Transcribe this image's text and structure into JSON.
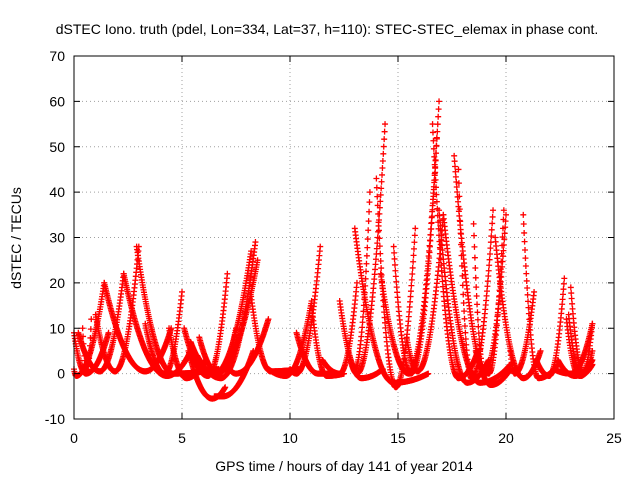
{
  "chart_data": {
    "type": "scatter",
    "title": "dSTEC Iono. truth (pdel, Lon=334, Lat=37, h=110): STEC-STEC_elemax in phase cont.",
    "xlabel": "GPS time / hours of day 141 of year 2014",
    "ylabel": "dSTEC  / TECUs",
    "xlim": [
      0,
      25
    ],
    "ylim": [
      -10,
      70
    ],
    "x_ticks": [
      0,
      5,
      10,
      15,
      20,
      25
    ],
    "y_ticks": [
      -10,
      0,
      10,
      20,
      30,
      40,
      50,
      60,
      70
    ],
    "grid": true,
    "marker": "+",
    "marker_color": "#ff0000",
    "arcs": [
      {
        "start": 0.0,
        "end": 1.6,
        "min_t": 0.55,
        "min_v": 0.0,
        "start_v": 9,
        "end_v": 9
      },
      {
        "start": 0.0,
        "end": 1.4,
        "min_t": 0.1,
        "min_v": -0.5,
        "start_v": 1,
        "end_v": 20
      },
      {
        "start": 0.2,
        "end": 2.3,
        "min_t": 1.2,
        "min_v": 0.5,
        "start_v": 9,
        "end_v": 22
      },
      {
        "start": 0.4,
        "end": 0.8,
        "min_t": 0.6,
        "min_v": 0.5,
        "start_v": 10,
        "end_v": 12
      },
      {
        "start": 1.0,
        "end": 3.0,
        "min_t": 1.9,
        "min_v": 0.5,
        "start_v": 13,
        "end_v": 28
      },
      {
        "start": 1.4,
        "end": 4.5,
        "min_t": 3.3,
        "min_v": 0.5,
        "start_v": 20,
        "end_v": 10
      },
      {
        "start": 2.3,
        "end": 5.4,
        "min_t": 4.3,
        "min_v": -0.5,
        "start_v": 22,
        "end_v": 5
      },
      {
        "start": 2.9,
        "end": 6.7,
        "min_t": 4.6,
        "min_v": 0.0,
        "start_v": 28,
        "end_v": 1
      },
      {
        "start": 3.3,
        "end": 5.0,
        "min_t": 4.2,
        "min_v": 0.0,
        "start_v": 11,
        "end_v": 18
      },
      {
        "start": 4.4,
        "end": 6.1,
        "min_t": 5.2,
        "min_v": -1.0,
        "start_v": 10,
        "end_v": 3
      },
      {
        "start": 5.1,
        "end": 7.1,
        "min_t": 6.2,
        "min_v": -0.5,
        "start_v": 10,
        "end_v": 22
      },
      {
        "start": 5.4,
        "end": 8.2,
        "min_t": 6.5,
        "min_v": 0.0,
        "start_v": 7,
        "end_v": 27
      },
      {
        "start": 5.7,
        "end": 8.4,
        "min_t": 6.8,
        "min_v": -1.0,
        "start_v": 4,
        "end_v": 29
      },
      {
        "start": 5.8,
        "end": 8.5,
        "min_t": 6.6,
        "min_v": 0.5,
        "start_v": 8,
        "end_v": 25
      },
      {
        "start": 5.8,
        "end": 7.5,
        "min_t": 6.7,
        "min_v": 0.0,
        "start_v": 1,
        "end_v": 10
      },
      {
        "start": 5.3,
        "end": 7.0,
        "min_t": 6.4,
        "min_v": -5.5,
        "start_v": 5,
        "end_v": -3
      },
      {
        "start": 6.5,
        "end": 8.3,
        "min_t": 6.9,
        "min_v": -5.0,
        "start_v": -5,
        "end_v": 5
      },
      {
        "start": 7.2,
        "end": 9.0,
        "min_t": 7.5,
        "min_v": 0.0,
        "start_v": 1,
        "end_v": 12
      },
      {
        "start": 8.2,
        "end": 10.4,
        "min_t": 9.1,
        "min_v": 0.5,
        "start_v": 17,
        "end_v": 1
      },
      {
        "start": 9.0,
        "end": 11.0,
        "min_t": 9.8,
        "min_v": -0.5,
        "start_v": 1,
        "end_v": 16
      },
      {
        "start": 10.0,
        "end": 11.4,
        "min_t": 10.3,
        "min_v": 0.0,
        "start_v": 1,
        "end_v": 28
      },
      {
        "start": 10.3,
        "end": 12.0,
        "min_t": 11.3,
        "min_v": 0.0,
        "start_v": 9,
        "end_v": 0
      },
      {
        "start": 11.0,
        "end": 12.5,
        "min_t": 11.7,
        "min_v": -0.5,
        "start_v": 15,
        "end_v": 0
      },
      {
        "start": 11.5,
        "end": 13.1,
        "min_t": 12.3,
        "min_v": 0.0,
        "start_v": 3,
        "end_v": 20
      },
      {
        "start": 12.3,
        "end": 14.3,
        "min_t": 13.3,
        "min_v": -1.0,
        "start_v": 16,
        "end_v": 1
      },
      {
        "start": 12.8,
        "end": 14.4,
        "min_t": 13.1,
        "min_v": 0.0,
        "start_v": 3,
        "end_v": 55
      },
      {
        "start": 12.9,
        "end": 13.7,
        "min_t": 13.0,
        "min_v": 1.0,
        "start_v": 2,
        "end_v": 40
      },
      {
        "start": 13.0,
        "end": 16.4,
        "min_t": 14.8,
        "min_v": -2.0,
        "start_v": 32,
        "end_v": 0
      },
      {
        "start": 14.0,
        "end": 15.8,
        "min_t": 14.9,
        "min_v": -3.0,
        "start_v": 43,
        "end_v": 32
      },
      {
        "start": 14.2,
        "end": 16.9,
        "min_t": 15.5,
        "min_v": 0.0,
        "start_v": 22,
        "end_v": 60
      },
      {
        "start": 14.8,
        "end": 16.8,
        "min_t": 15.6,
        "min_v": 0.0,
        "start_v": 28,
        "end_v": 52
      },
      {
        "start": 15.4,
        "end": 17.1,
        "min_t": 15.9,
        "min_v": 0.5,
        "start_v": 8,
        "end_v": 35
      },
      {
        "start": 16.6,
        "end": 18.7,
        "min_t": 17.8,
        "min_v": -1.0,
        "start_v": 55,
        "end_v": 5
      },
      {
        "start": 16.9,
        "end": 19.2,
        "min_t": 18.2,
        "min_v": -2.0,
        "start_v": 36,
        "end_v": 3
      },
      {
        "start": 17.1,
        "end": 20.2,
        "min_t": 18.8,
        "min_v": -2.0,
        "start_v": 35,
        "end_v": 2
      },
      {
        "start": 17.6,
        "end": 20.2,
        "min_t": 19.3,
        "min_v": -2.5,
        "start_v": 48,
        "end_v": 1
      },
      {
        "start": 17.8,
        "end": 19.4,
        "min_t": 18.4,
        "min_v": -1.0,
        "start_v": 45,
        "end_v": 36
      },
      {
        "start": 18.6,
        "end": 19.9,
        "min_t": 19.2,
        "min_v": 0.0,
        "start_v": 5,
        "end_v": 36
      },
      {
        "start": 18.5,
        "end": 20.0,
        "min_t": 19.0,
        "min_v": 0.0,
        "start_v": 33,
        "end_v": 35
      },
      {
        "start": 19.5,
        "end": 21.6,
        "min_t": 20.8,
        "min_v": -1.0,
        "start_v": 30,
        "end_v": 5
      },
      {
        "start": 20.2,
        "end": 21.3,
        "min_t": 20.4,
        "min_v": 0.0,
        "start_v": 5,
        "end_v": 18
      },
      {
        "start": 20.8,
        "end": 22.4,
        "min_t": 21.5,
        "min_v": -1.0,
        "start_v": 35,
        "end_v": 2
      },
      {
        "start": 21.4,
        "end": 22.7,
        "min_t": 22.0,
        "min_v": -0.5,
        "start_v": 3,
        "end_v": 21
      },
      {
        "start": 22.2,
        "end": 24.0,
        "min_t": 23.0,
        "min_v": 0.0,
        "start_v": 1,
        "end_v": 11
      },
      {
        "start": 22.8,
        "end": 24.0,
        "min_t": 23.4,
        "min_v": -0.5,
        "start_v": 12,
        "end_v": 2
      },
      {
        "start": 23.0,
        "end": 24.0,
        "min_t": 23.6,
        "min_v": 0.0,
        "start_v": 19,
        "end_v": 5
      },
      {
        "start": 22.9,
        "end": 24.0,
        "min_t": 23.5,
        "min_v": -0.5,
        "start_v": 13,
        "end_v": 11
      },
      {
        "start": 22.4,
        "end": 24.0,
        "min_t": 23.2,
        "min_v": -0.5,
        "start_v": 3,
        "end_v": 3
      }
    ]
  }
}
